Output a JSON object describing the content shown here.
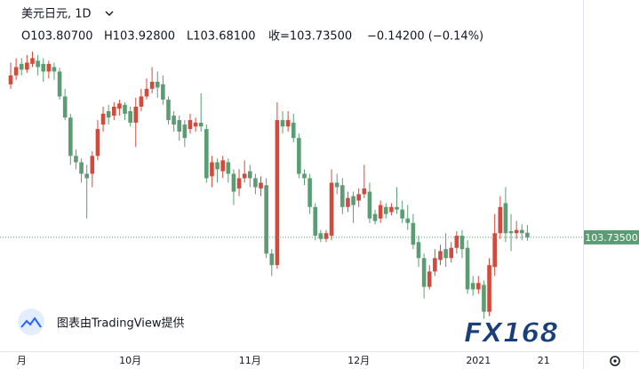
{
  "header": {
    "symbol": "美元日元, 1D",
    "open": "O103.80700",
    "high": "H103.92800",
    "low": "L103.68100",
    "close": "收=103.73500",
    "change": "−0.14200 (−0.14%)"
  },
  "watermark": "图表由TradingView提供",
  "logo": "FX168",
  "chart_data": {
    "type": "candlestick",
    "up_color": "#d24a3c",
    "down_color": "#5b9c74",
    "ylim": [
      101.98,
      107.45
    ],
    "price_line": {
      "value": 103.735,
      "label": "103.73500"
    },
    "categories": [
      null,
      null,
      "月",
      null,
      null,
      null,
      null,
      null,
      null,
      null,
      null,
      null,
      null,
      null,
      null,
      null,
      null,
      null,
      null,
      null,
      null,
      null,
      "10月",
      null,
      null,
      null,
      null,
      null,
      null,
      null,
      null,
      null,
      null,
      null,
      null,
      null,
      null,
      null,
      null,
      null,
      null,
      null,
      null,
      null,
      "11月",
      null,
      null,
      null,
      null,
      null,
      null,
      null,
      null,
      null,
      null,
      null,
      null,
      null,
      null,
      null,
      null,
      null,
      null,
      null,
      "12月",
      null,
      null,
      null,
      null,
      null,
      null,
      null,
      null,
      null,
      null,
      null,
      null,
      null,
      null,
      null,
      null,
      null,
      null,
      null,
      null,
      null,
      "2021",
      null,
      null,
      null,
      null,
      null,
      null,
      null,
      null,
      null,
      null,
      null,
      "21"
    ],
    "open": [
      106.13,
      106.27,
      106.45,
      106.36,
      106.45,
      106.5,
      106.45,
      106.33,
      106.4,
      106.33,
      105.94,
      105.61,
      105.01,
      104.91,
      104.73,
      104.73,
      105.01,
      105.5,
      105.71,
      105.64,
      105.75,
      105.81,
      105.71,
      105.53,
      105.78,
      105.94,
      106.06,
      106.17,
      106.13,
      105.89,
      105.64,
      105.57,
      105.5,
      105.43,
      105.47,
      105.53,
      105.43,
      104.69,
      104.91,
      104.77,
      104.91,
      104.73,
      104.5,
      104.66,
      104.77,
      104.66,
      104.5,
      104.55,
      103.48,
      103.3,
      105.57,
      105.47,
      105.53,
      105.29,
      104.73,
      104.66,
      104.21,
      103.8,
      103.71,
      103.76,
      104.59,
      104.55,
      104.21,
      104.38,
      104.31,
      104.41,
      104.45,
      104.1,
      104.03,
      104.21,
      104.13,
      104.21,
      104.17,
      104.03,
      103.96,
      103.66,
      103.41,
      102.96,
      103.2,
      103.38,
      103.55,
      103.41,
      103.57,
      103.76,
      103.57,
      103.02,
      102.92,
      102.99,
      102.57,
      103.27,
      103.8,
      104.27,
      103.83,
      103.8,
      103.85,
      103.807,
      null,
      null,
      null
    ],
    "high": [
      106.47,
      106.54,
      106.54,
      106.59,
      106.64,
      106.59,
      106.54,
      106.5,
      106.47,
      106.39,
      106.06,
      105.67,
      105.11,
      104.97,
      104.87,
      105.08,
      105.57,
      105.78,
      105.81,
      105.85,
      105.89,
      105.85,
      105.78,
      105.92,
      106.06,
      106.22,
      106.4,
      106.33,
      106.27,
      105.94,
      105.71,
      105.64,
      105.57,
      105.67,
      105.61,
      105.99,
      105.5,
      105.01,
      104.97,
      105.01,
      104.97,
      104.8,
      104.8,
      104.94,
      104.87,
      104.73,
      104.69,
      104.66,
      103.55,
      105.85,
      105.71,
      105.71,
      105.67,
      105.36,
      104.8,
      104.73,
      104.27,
      103.85,
      103.85,
      104.8,
      104.73,
      104.66,
      104.45,
      104.45,
      104.5,
      104.87,
      104.59,
      104.17,
      104.31,
      104.27,
      104.27,
      104.52,
      104.31,
      104.24,
      104.1,
      103.76,
      103.48,
      103.3,
      103.55,
      103.62,
      103.8,
      103.66,
      103.83,
      103.85,
      103.69,
      103.13,
      103.13,
      103.06,
      103.41,
      104.1,
      104.38,
      104.52,
      104.1,
      103.99,
      103.94,
      103.928,
      null,
      null,
      null
    ],
    "low": [
      106.06,
      106.2,
      106.27,
      106.31,
      106.4,
      106.27,
      106.17,
      106.22,
      106.2,
      105.89,
      105.57,
      104.87,
      104.8,
      104.59,
      104.03,
      104.52,
      104.94,
      105.39,
      105.5,
      105.57,
      105.64,
      105.57,
      105.47,
      105.15,
      105.71,
      105.89,
      105.99,
      105.92,
      105.81,
      105.5,
      105.39,
      105.25,
      105.15,
      105.36,
      105.39,
      105.39,
      104.59,
      104.52,
      104.59,
      104.66,
      104.59,
      104.24,
      104.38,
      104.59,
      104.52,
      104.41,
      104.38,
      103.41,
      103.13,
      103.24,
      105.36,
      105.39,
      105.22,
      104.66,
      104.55,
      104.1,
      103.69,
      103.66,
      103.66,
      103.69,
      104.41,
      104.1,
      104.13,
      103.96,
      104.21,
      104.35,
      103.96,
      103.94,
      103.96,
      104.03,
      104.08,
      104.1,
      103.96,
      103.85,
      103.55,
      103.27,
      102.78,
      102.92,
      103.13,
      103.3,
      103.27,
      103.34,
      103.48,
      103.41,
      102.85,
      102.82,
      102.85,
      102.46,
      102.5,
      103.13,
      103.71,
      103.66,
      103.52,
      103.71,
      103.69,
      103.681,
      null,
      null,
      null
    ],
    "close": [
      106.27,
      106.4,
      106.36,
      106.47,
      106.54,
      106.4,
      106.33,
      106.45,
      106.33,
      105.94,
      105.61,
      105.01,
      104.91,
      104.73,
      104.66,
      105.01,
      105.43,
      105.67,
      105.61,
      105.78,
      105.83,
      105.67,
      105.53,
      105.78,
      105.94,
      106.06,
      106.17,
      106.08,
      105.89,
      105.57,
      105.5,
      105.39,
      105.29,
      105.57,
      105.53,
      105.47,
      104.66,
      104.91,
      104.8,
      104.94,
      104.73,
      104.45,
      104.66,
      104.73,
      104.66,
      104.52,
      104.59,
      103.48,
      103.3,
      105.57,
      105.47,
      105.57,
      105.29,
      104.73,
      104.66,
      104.21,
      103.76,
      103.71,
      103.8,
      104.59,
      104.52,
      104.21,
      104.35,
      104.24,
      104.41,
      104.5,
      104.03,
      103.99,
      104.24,
      104.1,
      104.21,
      104.17,
      104.03,
      103.96,
      103.62,
      103.41,
      102.96,
      103.2,
      103.41,
      103.52,
      103.41,
      103.57,
      103.76,
      103.55,
      102.92,
      102.92,
      103.02,
      102.57,
      103.3,
      103.8,
      104.21,
      103.8,
      103.8,
      103.85,
      103.8,
      103.735,
      null,
      null,
      null
    ]
  }
}
